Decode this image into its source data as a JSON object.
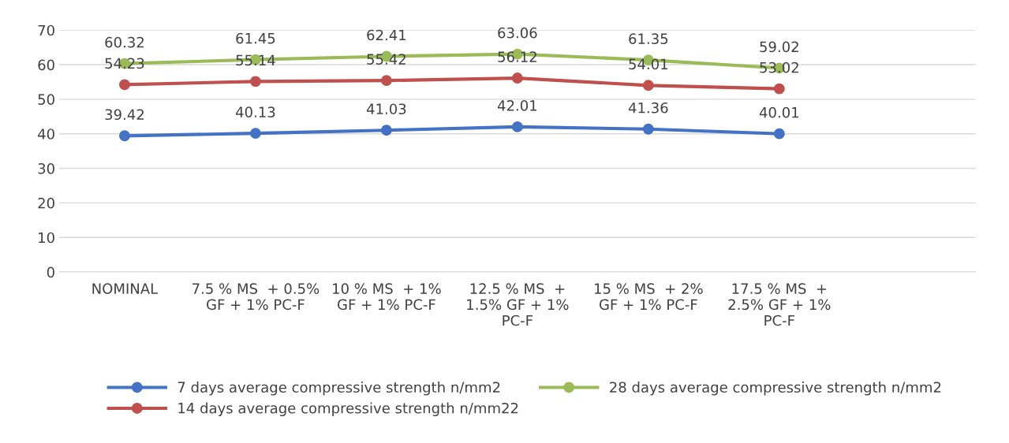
{
  "chart_data": {
    "type": "line",
    "categories": [
      "NOMINAL",
      "7.5 % MS  + 0.5%\nGF + 1% PC-F",
      "10 % MS  + 1%\nGF + 1% PC-F",
      "12.5 % MS  +\n1.5% GF + 1%\nPC-F",
      "15 % MS  + 2%\nGF + 1% PC-F",
      "17.5 % MS  +\n2.5% GF + 1%\nPC-F",
      null
    ],
    "series": [
      {
        "name": "7 days average compressive strength n/mm2",
        "color": "#4472c4",
        "values": [
          39.42,
          40.13,
          41.03,
          42.01,
          41.36,
          40.01,
          null
        ]
      },
      {
        "name": "14 days average compressive strength n/mm22",
        "color": "#c0504d",
        "values": [
          54.23,
          55.14,
          55.42,
          56.12,
          54.01,
          53.02,
          null
        ]
      },
      {
        "name": "28 days average compressive strength n/mm2",
        "color": "#9bbb59",
        "values": [
          60.32,
          61.45,
          62.41,
          63.06,
          61.35,
          59.02,
          null
        ]
      }
    ],
    "ylim": [
      0,
      70
    ],
    "yticks": [
      0,
      10,
      20,
      30,
      40,
      50,
      60,
      70
    ],
    "grid": "y",
    "legend": "bottom",
    "marker": "circle",
    "line_style": "solid",
    "data_labels": true
  }
}
